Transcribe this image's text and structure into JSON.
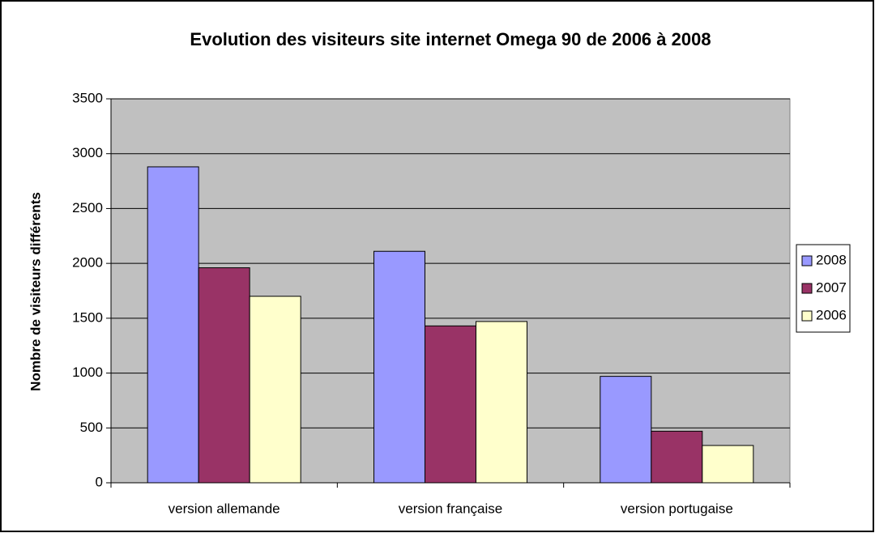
{
  "chart_data": {
    "type": "bar",
    "title": "Evolution des visiteurs site internet Omega 90 de 2006 à 2008",
    "y_label": "Nombre de visiteurs différents",
    "categories": [
      "version allemande",
      "version française",
      "version portugaise"
    ],
    "series": [
      {
        "name": "2008",
        "color": "#9999ff",
        "values": [
          2880,
          2110,
          970
        ]
      },
      {
        "name": "2007",
        "color": "#993366",
        "values": [
          1960,
          1430,
          470
        ]
      },
      {
        "name": "2006",
        "color": "#ffffcc",
        "values": [
          1700,
          1470,
          340
        ]
      }
    ],
    "ylim": [
      0,
      3500
    ],
    "yticks": [
      0,
      500,
      1000,
      1500,
      2000,
      2500,
      3000,
      3500
    ],
    "grid": true,
    "legend": "right",
    "plot_background": "#c0c0c0"
  }
}
